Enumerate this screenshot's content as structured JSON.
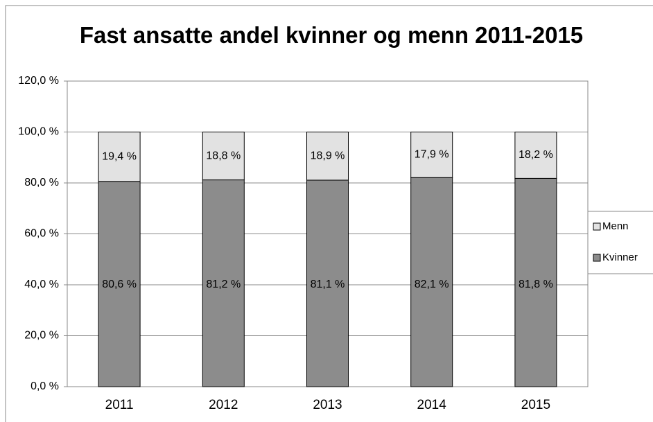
{
  "chart_data": {
    "type": "stacked_bar",
    "title": "Fast ansatte andel kvinner og menn 2011-2015",
    "categories": [
      "2011",
      "2012",
      "2013",
      "2014",
      "2015"
    ],
    "series": [
      {
        "name": "Kvinner",
        "color": "#8c8c8c",
        "values": [
          80.6,
          81.2,
          81.1,
          82.1,
          81.8
        ],
        "value_labels": [
          "80,6 %",
          "81,2 %",
          "81,1 %",
          "82,1 %",
          "81,8 %"
        ]
      },
      {
        "name": "Menn",
        "color": "#e2e2e2",
        "values": [
          19.4,
          18.8,
          18.9,
          17.9,
          18.2
        ],
        "value_labels": [
          "19,4 %",
          "18,8 %",
          "18,9 %",
          "17,9 %",
          "18,2 %"
        ]
      }
    ],
    "ylim": [
      0,
      120
    ],
    "yticks": [
      {
        "value": 0,
        "label": "0,0 %"
      },
      {
        "value": 20,
        "label": "20,0 %"
      },
      {
        "value": 40,
        "label": "40,0 %"
      },
      {
        "value": 60,
        "label": "60,0 %"
      },
      {
        "value": 80,
        "label": "80,0 %"
      },
      {
        "value": 100,
        "label": "100,0 %"
      },
      {
        "value": 120,
        "label": "120,0 %"
      }
    ],
    "grid": true,
    "legend": "right"
  }
}
